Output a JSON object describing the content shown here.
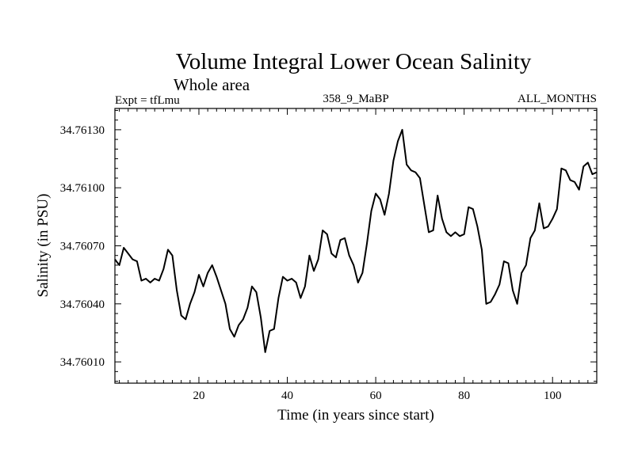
{
  "chart_data": {
    "type": "line",
    "title": "Volume Integral Lower Ocean Salinity",
    "subtitle": "Whole area",
    "label_left": "Expt = tfLmu",
    "label_center": "358_9_MaBP",
    "label_right": "ALL_MONTHS",
    "xlabel": "Time (in years since start)",
    "ylabel": "Salinity (in PSU)",
    "xlim": [
      1,
      110
    ],
    "ylim": [
      34.75999,
      34.76141
    ],
    "x_ticks": [
      20,
      40,
      60,
      80,
      100
    ],
    "y_ticks": [
      34.7601,
      34.7604,
      34.7607,
      34.761,
      34.7613
    ],
    "y_tick_labels": [
      "34.76010",
      "34.76040",
      "34.76070",
      "34.76100",
      "34.76130"
    ],
    "series": [
      {
        "name": "Salinity",
        "x": [
          1,
          2,
          3,
          4,
          5,
          6,
          7,
          8,
          9,
          10,
          11,
          12,
          13,
          14,
          15,
          16,
          17,
          18,
          19,
          20,
          21,
          22,
          23,
          24,
          25,
          26,
          27,
          28,
          29,
          30,
          31,
          32,
          33,
          34,
          35,
          36,
          37,
          38,
          39,
          40,
          41,
          42,
          43,
          44,
          45,
          46,
          47,
          48,
          49,
          50,
          51,
          52,
          53,
          54,
          55,
          56,
          57,
          58,
          59,
          60,
          61,
          62,
          63,
          64,
          65,
          66,
          67,
          68,
          69,
          70,
          71,
          72,
          73,
          74,
          75,
          76,
          77,
          78,
          79,
          80,
          81,
          82,
          83,
          84,
          85,
          86,
          87,
          88,
          89,
          90,
          91,
          92,
          93,
          94,
          95,
          96,
          97,
          98,
          99,
          100,
          101,
          102,
          103,
          104,
          105,
          106,
          107,
          108,
          109,
          110
        ],
        "values": [
          34.76063,
          34.7606,
          34.76069,
          34.76066,
          34.76063,
          34.76062,
          34.76052,
          34.76053,
          34.76051,
          34.76053,
          34.76052,
          34.76058,
          34.76068,
          34.76065,
          34.76047,
          34.76034,
          34.76032,
          34.7604,
          34.76046,
          34.76055,
          34.76049,
          34.76056,
          34.7606,
          34.76054,
          34.76047,
          34.7604,
          34.76027,
          34.76023,
          34.76029,
          34.76032,
          34.76038,
          34.76049,
          34.76046,
          34.76033,
          34.76015,
          34.76026,
          34.76027,
          34.76043,
          34.76054,
          34.76052,
          34.76053,
          34.76051,
          34.76043,
          34.76049,
          34.76065,
          34.76057,
          34.76063,
          34.76078,
          34.76076,
          34.76066,
          34.76064,
          34.76073,
          34.76074,
          34.76065,
          34.7606,
          34.76051,
          34.76056,
          34.76071,
          34.76088,
          34.76097,
          34.76094,
          34.76086,
          34.76097,
          34.76114,
          34.76124,
          34.7613,
          34.76112,
          34.76109,
          34.76108,
          34.76105,
          34.76091,
          34.76077,
          34.76078,
          34.76096,
          34.76084,
          34.76077,
          34.76075,
          34.76077,
          34.76075,
          34.76076,
          34.7609,
          34.76089,
          34.7608,
          34.76068,
          34.7604,
          34.76041,
          34.76045,
          34.7605,
          34.76062,
          34.76061,
          34.76047,
          34.7604,
          34.76056,
          34.7606,
          34.76074,
          34.76078,
          34.76092,
          34.76079,
          34.7608,
          34.76084,
          34.76089,
          34.7611,
          34.76109,
          34.76104,
          34.76103,
          34.76099,
          34.76111,
          34.76113,
          34.76107,
          34.76108
        ]
      }
    ]
  }
}
